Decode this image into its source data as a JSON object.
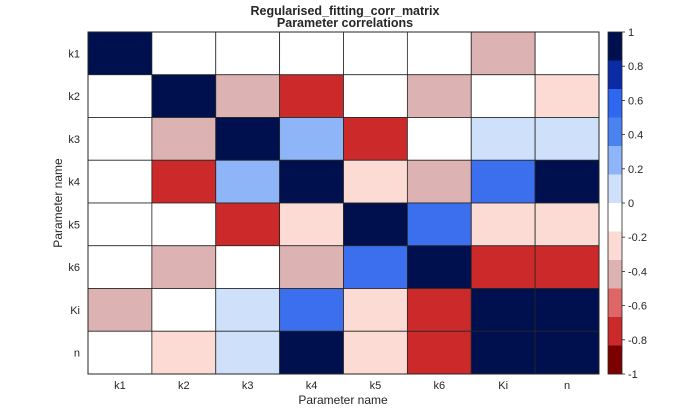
{
  "chart_data": {
    "type": "heatmap",
    "title": "Regularised_fitting_corr_matrix",
    "subtitle": "Parameter correlations",
    "xlabel": "Parameter name",
    "ylabel": "Parameter name",
    "x_categories": [
      "k1",
      "k2",
      "k3",
      "k4",
      "k5",
      "k6",
      "Ki",
      "n"
    ],
    "y_categories": [
      "k1",
      "k2",
      "k3",
      "k4",
      "k5",
      "k6",
      "Ki",
      "n"
    ],
    "values": [
      [
        1,
        0,
        0,
        0,
        0,
        0,
        -0.4,
        0
      ],
      [
        0,
        1,
        -0.4,
        -0.8,
        0,
        -0.4,
        0,
        -0.2
      ],
      [
        0,
        -0.4,
        1,
        0.4,
        -0.8,
        0,
        0.2,
        0.2
      ],
      [
        0,
        -0.8,
        0.4,
        1,
        -0.2,
        -0.4,
        0.6,
        1
      ],
      [
        0,
        0,
        -0.8,
        -0.2,
        1,
        0.6,
        -0.2,
        -0.2
      ],
      [
        0,
        -0.4,
        0,
        -0.4,
        0.6,
        1,
        -0.8,
        -0.8
      ],
      [
        -0.4,
        0,
        0.2,
        0.6,
        -0.2,
        -0.8,
        1,
        1
      ],
      [
        0,
        -0.2,
        0.2,
        1,
        -0.2,
        -0.8,
        1,
        1
      ]
    ],
    "clim": [
      -1,
      1
    ],
    "colorbar": {
      "ticks": [
        1,
        0.8,
        0.6,
        0.4,
        0.2,
        0,
        -0.2,
        -0.4,
        -0.6,
        -0.8,
        -1
      ],
      "tick_labels": [
        "1",
        "0.8",
        "0.6",
        "0.4",
        "0.2",
        "0",
        "-0.2",
        "-0.4",
        "-0.6",
        "-0.8",
        "-1"
      ],
      "colors_top_to_bottom": [
        "#00104f",
        "#0a2aa6",
        "#2f67ef",
        "#4a83f0",
        "#8db5f7",
        "#cfe0fb",
        "#ffffff",
        "#fbdbd3",
        "#dcb2b2",
        "#de6666",
        "#cc2a2a",
        "#7d0000"
      ]
    },
    "cell_colors": {
      "1": "#00104f",
      "0.6": "#3b6fee",
      "0.4": "#8db5f7",
      "0.2": "#cfe0fb",
      "0": "#ffffff",
      "-0.2": "#fbdbd3",
      "-0.4": "#dcb2b2",
      "-0.8": "#cc2a2a"
    },
    "grid": true,
    "legend": "colorbar-right"
  }
}
